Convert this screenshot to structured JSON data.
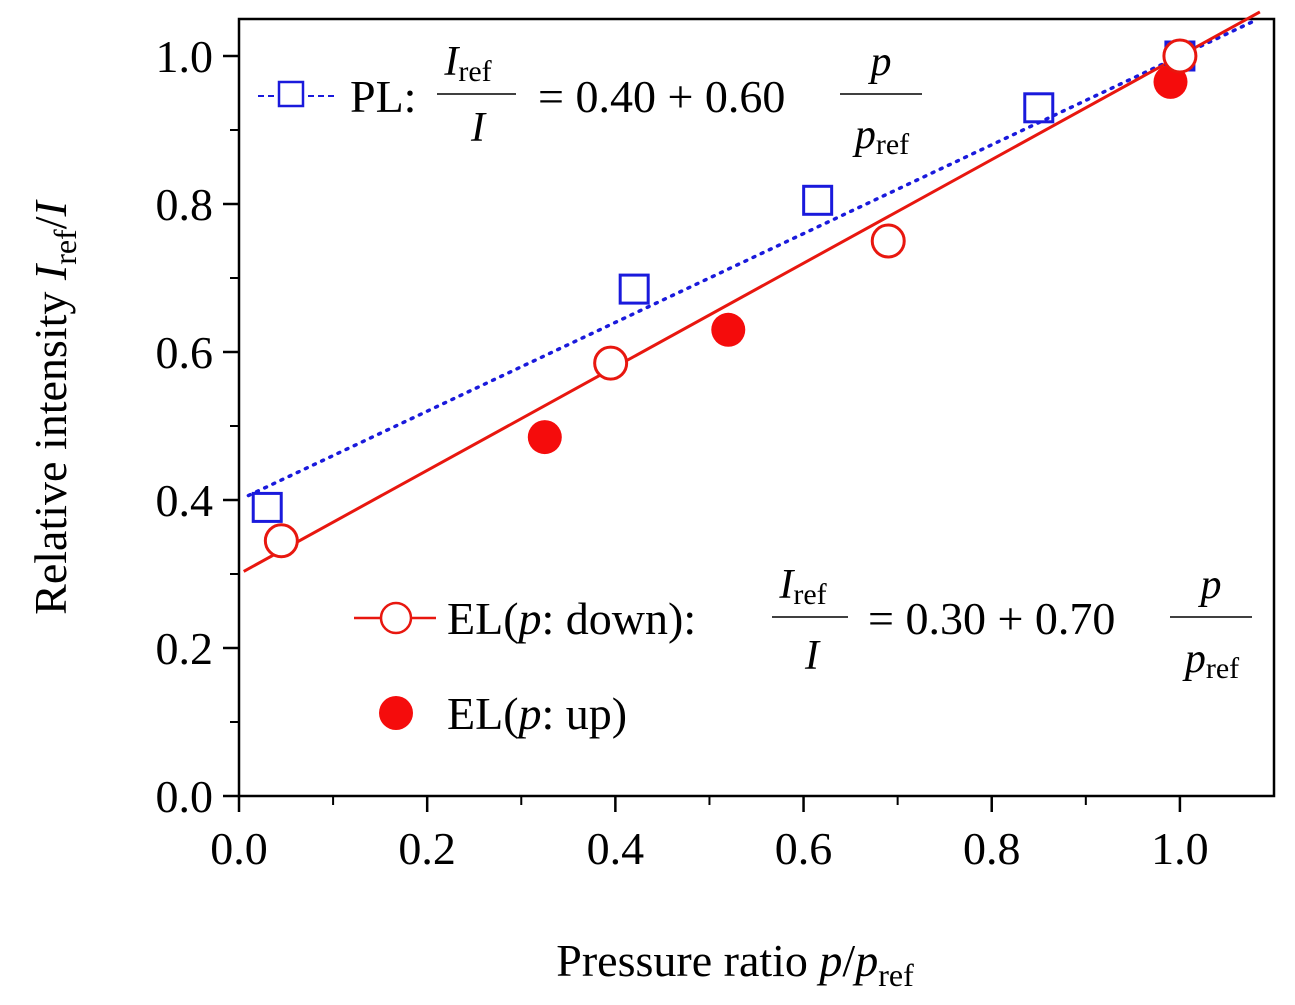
{
  "chart_data": {
    "type": "scatter",
    "title": "",
    "xlim": [
      0.0,
      1.1
    ],
    "ylim": [
      0.0,
      1.05
    ],
    "x_ticks": [
      0.0,
      0.2,
      0.4,
      0.6,
      0.8,
      1.0
    ],
    "y_ticks": [
      0.0,
      0.2,
      0.4,
      0.6,
      0.8,
      1.0
    ],
    "x_tick_labels": [
      "0.0",
      "0.2",
      "0.4",
      "0.6",
      "0.8",
      "1.0"
    ],
    "y_tick_labels": [
      "0.0",
      "0.2",
      "0.4",
      "0.6",
      "0.8",
      "1.0"
    ],
    "xlabel": {
      "text": "Pressure ratio",
      "var": "p",
      "sep": "/",
      "den": "p",
      "den_sub": "ref"
    },
    "ylabel": {
      "text": "Relative intensity",
      "var": "I",
      "var_sub": "ref",
      "sep": "/",
      "den": "I"
    },
    "grid": false,
    "series": [
      {
        "name": "PL",
        "marker": "open-square",
        "color": "#1a1adc",
        "x": [
          0.03,
          0.42,
          0.615,
          0.85,
          1.0
        ],
        "y": [
          0.39,
          0.685,
          0.805,
          0.93,
          1.0
        ],
        "fit": {
          "intercept": 0.4,
          "slope": 0.6,
          "style": "dotted",
          "x_range": [
            0.01,
            1.08
          ]
        }
      },
      {
        "name": "EL(p: down)",
        "marker": "open-circle",
        "color": "#e8170f",
        "x": [
          0.045,
          0.395,
          0.69,
          1.0
        ],
        "y": [
          0.345,
          0.585,
          0.75,
          1.0
        ],
        "fit": {
          "intercept": 0.3,
          "slope": 0.7,
          "style": "solid",
          "x_range": [
            0.005,
            1.085
          ]
        }
      },
      {
        "name": "EL(p: up)",
        "marker": "filled-circle",
        "color": "#f50c0c",
        "x": [
          0.325,
          0.52,
          0.99
        ],
        "y": [
          0.485,
          0.63,
          0.965
        ]
      }
    ],
    "legend": {
      "placement": "top-left and bottom-right",
      "pl": {
        "label": "PL:",
        "frac_num": "I",
        "frac_num_sub": "ref",
        "frac_den": "I",
        "eq": "= 0.40 + 0.60",
        "rfrac_num": "p",
        "rfrac_den": "p",
        "rfrac_den_sub": "ref"
      },
      "el_down": {
        "label_pre": "EL(",
        "label_var": "p",
        "label_post": ": down):",
        "frac_num": "I",
        "frac_num_sub": "ref",
        "frac_den": "I",
        "eq": "= 0.30 + 0.70",
        "rfrac_num": "p",
        "rfrac_den": "p",
        "rfrac_den_sub": "ref"
      },
      "el_up": {
        "label_pre": "EL(",
        "label_var": "p",
        "label_post": ": up)"
      }
    }
  }
}
